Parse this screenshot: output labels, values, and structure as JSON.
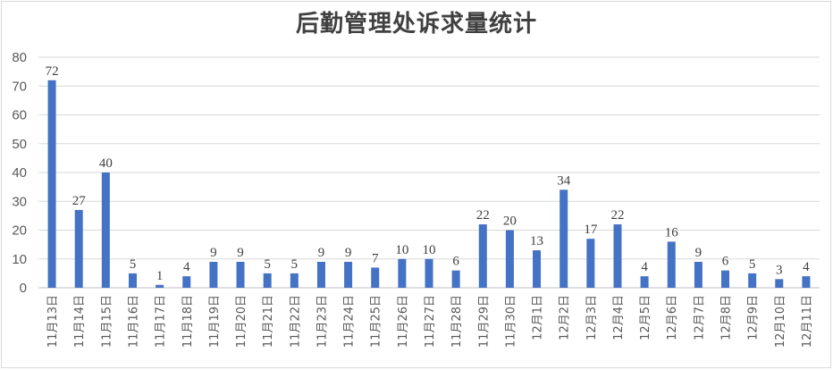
{
  "chart_data": {
    "type": "bar",
    "title": "后勤管理处诉求量统计",
    "xlabel": "",
    "ylabel": "",
    "ylim": [
      0,
      80
    ],
    "yticks": [
      0,
      10,
      20,
      30,
      40,
      50,
      60,
      70,
      80
    ],
    "grid": true,
    "legend": "none",
    "bar_color": "#4472c4",
    "categories": [
      "11月13日",
      "11月14日",
      "11月15日",
      "11月16日",
      "11月17日",
      "11月18日",
      "11月19日",
      "11月20日",
      "11月21日",
      "11月22日",
      "11月23日",
      "11月24日",
      "11月25日",
      "11月26日",
      "11月27日",
      "11月28日",
      "11月29日",
      "11月30日",
      "12月1日",
      "12月2日",
      "12月3日",
      "12月4日",
      "12月5日",
      "12月6日",
      "12月7日",
      "12月8日",
      "12月9日",
      "12月10日",
      "12月11日"
    ],
    "values": [
      72,
      27,
      40,
      5,
      1,
      4,
      9,
      9,
      5,
      5,
      9,
      9,
      7,
      10,
      10,
      6,
      22,
      20,
      13,
      34,
      17,
      22,
      4,
      16,
      9,
      6,
      5,
      3,
      4
    ]
  }
}
